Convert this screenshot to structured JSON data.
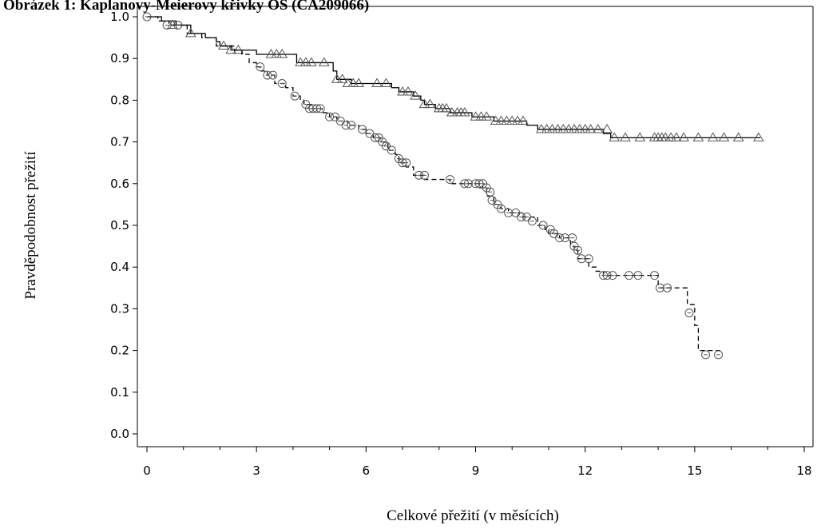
{
  "chart_data": {
    "type": "line",
    "title": "Obrázek 1:      Kaplanovy-Meierovy křivky OS (CA209066)",
    "xlabel": "Celkové přežití (v měsících)",
    "ylabel": "Pravděpodobnost přežití",
    "xlim": [
      0,
      18
    ],
    "ylim": [
      0,
      1.0
    ],
    "x_ticks": [
      "0",
      "3",
      "6",
      "9",
      "12",
      "15",
      "18"
    ],
    "y_ticks": [
      "0.0",
      "0.1",
      "0.2",
      "0.3",
      "0.4",
      "0.5",
      "0.6",
      "0.7",
      "0.8",
      "0.9",
      "1.0"
    ],
    "grid": false,
    "legend": "none",
    "series": [
      {
        "marker": "triangle",
        "line_style": "solid",
        "color": "#000000",
        "steps": [
          [
            0,
            1.0
          ],
          [
            0.4,
            0.99
          ],
          [
            0.8,
            0.98
          ],
          [
            1.2,
            0.96
          ],
          [
            1.6,
            0.95
          ],
          [
            1.9,
            0.94
          ],
          [
            2.0,
            0.93
          ],
          [
            2.3,
            0.92
          ],
          [
            3.0,
            0.91
          ],
          [
            4.1,
            0.89
          ],
          [
            5.1,
            0.87
          ],
          [
            5.2,
            0.85
          ],
          [
            5.6,
            0.84
          ],
          [
            6.7,
            0.83
          ],
          [
            6.9,
            0.82
          ],
          [
            7.3,
            0.81
          ],
          [
            7.5,
            0.8
          ],
          [
            7.6,
            0.79
          ],
          [
            7.9,
            0.78
          ],
          [
            8.3,
            0.77
          ],
          [
            8.9,
            0.76
          ],
          [
            9.5,
            0.75
          ],
          [
            10.4,
            0.74
          ],
          [
            10.7,
            0.73
          ],
          [
            12.5,
            0.72
          ],
          [
            12.7,
            0.71
          ],
          [
            16.8,
            0.71
          ]
        ],
        "censored": [
          [
            0.7,
            0.98
          ],
          [
            1.2,
            0.96
          ],
          [
            2.1,
            0.93
          ],
          [
            2.3,
            0.92
          ],
          [
            2.5,
            0.92
          ],
          [
            3.4,
            0.91
          ],
          [
            3.55,
            0.91
          ],
          [
            3.7,
            0.91
          ],
          [
            4.2,
            0.89
          ],
          [
            4.35,
            0.89
          ],
          [
            4.5,
            0.89
          ],
          [
            4.85,
            0.89
          ],
          [
            5.2,
            0.85
          ],
          [
            5.35,
            0.85
          ],
          [
            5.5,
            0.84
          ],
          [
            5.65,
            0.84
          ],
          [
            5.8,
            0.84
          ],
          [
            6.3,
            0.84
          ],
          [
            6.55,
            0.84
          ],
          [
            7.0,
            0.82
          ],
          [
            7.15,
            0.82
          ],
          [
            7.35,
            0.81
          ],
          [
            7.6,
            0.79
          ],
          [
            7.75,
            0.79
          ],
          [
            8.0,
            0.78
          ],
          [
            8.1,
            0.78
          ],
          [
            8.2,
            0.78
          ],
          [
            8.35,
            0.77
          ],
          [
            8.5,
            0.77
          ],
          [
            8.6,
            0.77
          ],
          [
            8.7,
            0.77
          ],
          [
            9.0,
            0.76
          ],
          [
            9.15,
            0.76
          ],
          [
            9.3,
            0.76
          ],
          [
            9.55,
            0.75
          ],
          [
            9.7,
            0.75
          ],
          [
            9.85,
            0.75
          ],
          [
            10.0,
            0.75
          ],
          [
            10.15,
            0.75
          ],
          [
            10.3,
            0.75
          ],
          [
            10.8,
            0.73
          ],
          [
            10.95,
            0.73
          ],
          [
            11.1,
            0.73
          ],
          [
            11.25,
            0.73
          ],
          [
            11.4,
            0.73
          ],
          [
            11.55,
            0.73
          ],
          [
            11.7,
            0.73
          ],
          [
            11.85,
            0.73
          ],
          [
            12.0,
            0.73
          ],
          [
            12.15,
            0.73
          ],
          [
            12.35,
            0.73
          ],
          [
            12.6,
            0.73
          ],
          [
            12.8,
            0.71
          ],
          [
            13.1,
            0.71
          ],
          [
            13.5,
            0.71
          ],
          [
            13.9,
            0.71
          ],
          [
            14.0,
            0.71
          ],
          [
            14.1,
            0.71
          ],
          [
            14.2,
            0.71
          ],
          [
            14.35,
            0.71
          ],
          [
            14.5,
            0.71
          ],
          [
            14.7,
            0.71
          ],
          [
            15.1,
            0.71
          ],
          [
            15.5,
            0.71
          ],
          [
            15.8,
            0.71
          ],
          [
            16.2,
            0.71
          ],
          [
            16.75,
            0.71
          ]
        ]
      },
      {
        "marker": "circle",
        "line_style": "dashed",
        "color": "#000000",
        "steps": [
          [
            0,
            1.0
          ],
          [
            0.3,
            0.99
          ],
          [
            0.6,
            0.98
          ],
          [
            1.1,
            0.96
          ],
          [
            1.5,
            0.95
          ],
          [
            1.9,
            0.93
          ],
          [
            2.4,
            0.92
          ],
          [
            2.6,
            0.91
          ],
          [
            2.8,
            0.89
          ],
          [
            3.0,
            0.88
          ],
          [
            3.1,
            0.87
          ],
          [
            3.3,
            0.86
          ],
          [
            3.5,
            0.84
          ],
          [
            3.8,
            0.83
          ],
          [
            4.0,
            0.81
          ],
          [
            4.2,
            0.8
          ],
          [
            4.3,
            0.79
          ],
          [
            4.5,
            0.78
          ],
          [
            4.8,
            0.77
          ],
          [
            5.0,
            0.76
          ],
          [
            5.2,
            0.75
          ],
          [
            5.5,
            0.74
          ],
          [
            5.8,
            0.73
          ],
          [
            6.0,
            0.72
          ],
          [
            6.2,
            0.71
          ],
          [
            6.4,
            0.7
          ],
          [
            6.6,
            0.68
          ],
          [
            6.8,
            0.67
          ],
          [
            6.9,
            0.65
          ],
          [
            7.1,
            0.64
          ],
          [
            7.3,
            0.62
          ],
          [
            7.6,
            0.61
          ],
          [
            8.3,
            0.6
          ],
          [
            9.1,
            0.59
          ],
          [
            9.3,
            0.57
          ],
          [
            9.5,
            0.55
          ],
          [
            9.7,
            0.54
          ],
          [
            9.9,
            0.53
          ],
          [
            10.3,
            0.52
          ],
          [
            10.7,
            0.5
          ],
          [
            10.9,
            0.49
          ],
          [
            11.0,
            0.48
          ],
          [
            11.3,
            0.47
          ],
          [
            11.6,
            0.45
          ],
          [
            11.7,
            0.44
          ],
          [
            11.8,
            0.42
          ],
          [
            12.1,
            0.4
          ],
          [
            12.3,
            0.39
          ],
          [
            12.5,
            0.38
          ],
          [
            14.0,
            0.35
          ],
          [
            14.8,
            0.31
          ],
          [
            15.0,
            0.26
          ],
          [
            15.1,
            0.2
          ],
          [
            15.7,
            0.2
          ]
        ],
        "censored": [
          [
            0,
            1.0
          ],
          [
            0.55,
            0.98
          ],
          [
            0.85,
            0.98
          ],
          [
            3.1,
            0.88
          ],
          [
            3.3,
            0.86
          ],
          [
            3.45,
            0.86
          ],
          [
            3.7,
            0.84
          ],
          [
            4.05,
            0.81
          ],
          [
            4.35,
            0.79
          ],
          [
            4.45,
            0.78
          ],
          [
            4.55,
            0.78
          ],
          [
            4.65,
            0.78
          ],
          [
            4.75,
            0.78
          ],
          [
            5.0,
            0.76
          ],
          [
            5.15,
            0.76
          ],
          [
            5.3,
            0.75
          ],
          [
            5.45,
            0.74
          ],
          [
            5.6,
            0.74
          ],
          [
            5.9,
            0.73
          ],
          [
            6.1,
            0.72
          ],
          [
            6.25,
            0.71
          ],
          [
            6.35,
            0.71
          ],
          [
            6.45,
            0.7
          ],
          [
            6.55,
            0.69
          ],
          [
            6.7,
            0.68
          ],
          [
            6.9,
            0.66
          ],
          [
            7.0,
            0.65
          ],
          [
            7.1,
            0.65
          ],
          [
            7.45,
            0.62
          ],
          [
            7.6,
            0.62
          ],
          [
            8.3,
            0.61
          ],
          [
            8.7,
            0.6
          ],
          [
            8.8,
            0.6
          ],
          [
            9.0,
            0.6
          ],
          [
            9.1,
            0.6
          ],
          [
            9.2,
            0.6
          ],
          [
            9.3,
            0.59
          ],
          [
            9.4,
            0.58
          ],
          [
            9.45,
            0.56
          ],
          [
            9.6,
            0.55
          ],
          [
            9.7,
            0.54
          ],
          [
            9.9,
            0.53
          ],
          [
            10.1,
            0.53
          ],
          [
            10.25,
            0.52
          ],
          [
            10.4,
            0.52
          ],
          [
            10.55,
            0.51
          ],
          [
            10.85,
            0.5
          ],
          [
            11.05,
            0.49
          ],
          [
            11.15,
            0.48
          ],
          [
            11.3,
            0.47
          ],
          [
            11.45,
            0.47
          ],
          [
            11.65,
            0.47
          ],
          [
            11.7,
            0.45
          ],
          [
            11.8,
            0.44
          ],
          [
            11.9,
            0.42
          ],
          [
            12.1,
            0.42
          ],
          [
            12.5,
            0.38
          ],
          [
            12.6,
            0.38
          ],
          [
            12.75,
            0.38
          ],
          [
            13.2,
            0.38
          ],
          [
            13.45,
            0.38
          ],
          [
            13.9,
            0.38
          ],
          [
            14.05,
            0.35
          ],
          [
            14.25,
            0.35
          ],
          [
            14.85,
            0.29
          ],
          [
            15.3,
            0.19
          ],
          [
            15.65,
            0.19
          ]
        ]
      }
    ]
  }
}
